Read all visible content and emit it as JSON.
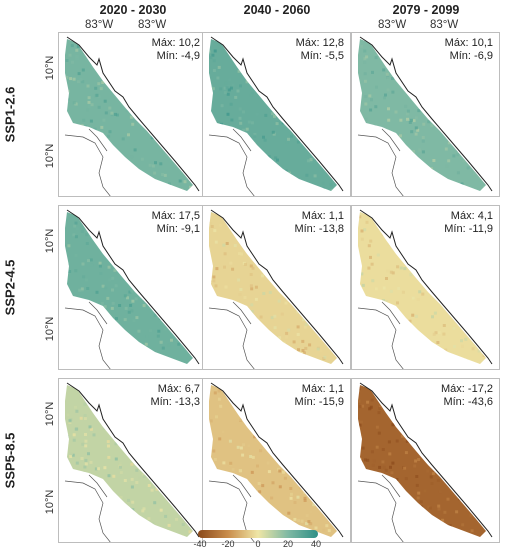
{
  "columns": [
    "2020 - 2030",
    "2040 - 2060",
    "2079 - 2099"
  ],
  "rows": [
    "SSP1-2.6",
    "SSP2-4.5",
    "SSP5-8.5"
  ],
  "lon_label": "83°W",
  "lat_label": "10°N",
  "max_prefix": "Máx:",
  "min_prefix": "Mín:",
  "panels": [
    [
      {
        "max": "10,2",
        "min": "-4,9",
        "value": 22
      },
      {
        "max": "12,8",
        "min": "-5,5",
        "value": 26
      },
      {
        "max": "10,1",
        "min": "-6,9",
        "value": 20
      }
    ],
    [
      {
        "max": "17,5",
        "min": "-9,1",
        "value": 24
      },
      {
        "max": "1,1",
        "min": "-13,8",
        "value": -4
      },
      {
        "max": "4,1",
        "min": "-11,9",
        "value": -2
      }
    ],
    [
      {
        "max": "6,7",
        "min": "-13,3",
        "value": 8
      },
      {
        "max": "1,1",
        "min": "-15,9",
        "value": -8
      },
      {
        "max": "-17,2",
        "min": "-43,6",
        "value": -32
      }
    ]
  ],
  "legend": {
    "ticks": [
      "-40",
      "-20",
      "0",
      "20",
      "40"
    ],
    "colors": [
      "#8b4a1b",
      "#c98d4c",
      "#efe6a6",
      "#7fb9a4",
      "#2f8f86"
    ]
  }
}
